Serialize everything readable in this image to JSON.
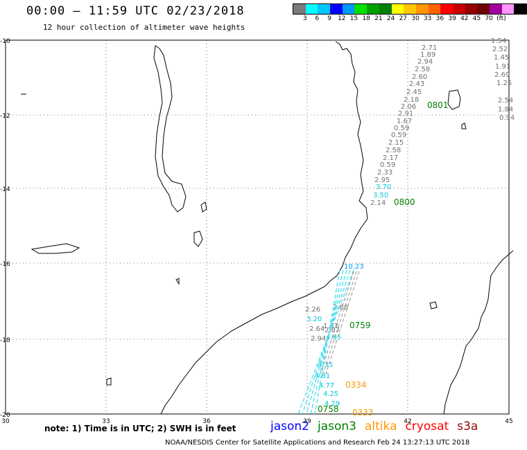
{
  "header": {
    "title": "00:00 – 11:59 UTC 02/23/2018",
    "subtitle": "12 hour collection of altimeter wave heights"
  },
  "colorbar": {
    "colors": [
      "#7a7a7a",
      "#00ffff",
      "#00c8ff",
      "#0000ff",
      "#0096ff",
      "#00e000",
      "#00a000",
      "#008000",
      "#ffff00",
      "#ffc800",
      "#ff9600",
      "#ff6400",
      "#ff0000",
      "#c80000",
      "#960000",
      "#6e0000",
      "#a000a0",
      "#ff96ff",
      "#000000"
    ],
    "labels": [
      "3",
      "6",
      "9",
      "12",
      "15",
      "18",
      "21",
      "24",
      "27",
      "30",
      "33",
      "36",
      "39",
      "42",
      "45",
      "70",
      "(ft)"
    ]
  },
  "map": {
    "lat_labels": [
      "-10",
      "-12",
      "-14",
      "-16",
      "-18",
      "-20"
    ],
    "lon_labels": [
      "30",
      "33",
      "36",
      "39",
      "42",
      "45"
    ],
    "land_color": "#ffffff",
    "coast_color": "#000000"
  },
  "tracks": {
    "times": [
      {
        "text": "0801",
        "color": "#008000"
      },
      {
        "text": "0800",
        "color": "#008000"
      },
      {
        "text": "0759",
        "color": "#008000"
      },
      {
        "text": "0758",
        "color": "#008000"
      },
      {
        "text": "0334",
        "color": "#ff9600"
      },
      {
        "text": "0333",
        "color": "#ff9600"
      }
    ],
    "gray_values": [
      "2.71",
      "1.89",
      "2.94",
      "2.58",
      "2.60",
      "2.43",
      "2.45",
      "2.18",
      "2.06",
      "2.91",
      "1.67",
      "0.59",
      "0.59",
      "2.15",
      "2.58",
      "2.17",
      "0.59",
      "2.33",
      "2.95",
      "2.14",
      "2.26",
      "2.64",
      "2.87",
      "2.94",
      "2.88",
      "1.37"
    ],
    "cyan_values": [
      "10.23",
      "3.20",
      "3.50",
      "3.70",
      "4.77",
      "4.25",
      "4.29",
      "4.65",
      "4.81",
      "4.35"
    ],
    "right_edge_values": [
      "1.54",
      "2.52",
      "1.45",
      "1.91",
      "2.69",
      "1.25",
      "2.54",
      "1.84",
      "0.94"
    ]
  },
  "note": "note:  1) Time is in UTC;  2) SWH is in feet",
  "legend": [
    {
      "name": "jason2",
      "color": "#0000ff"
    },
    {
      "name": "jason3",
      "color": "#008000"
    },
    {
      "name": "altika",
      "color": "#ff9600"
    },
    {
      "name": "cryosat",
      "color": "#ff0000"
    },
    {
      "name": "s3a",
      "color": "#960000"
    }
  ],
  "footer": "NOAA/NESDIS Center for Satellite Applications and Research    Feb 24 13:27:13 UTC 2018"
}
